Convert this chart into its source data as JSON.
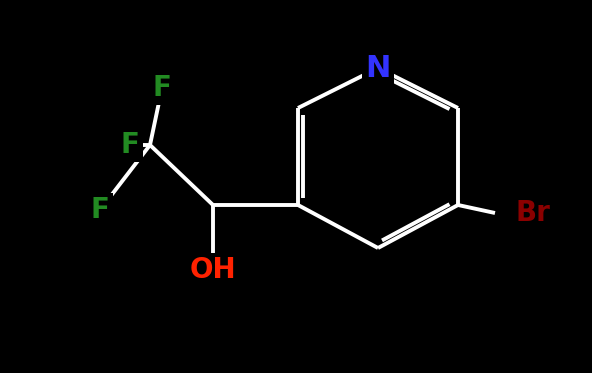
{
  "background_color": "#000000",
  "bond_color": "#ffffff",
  "bond_width": 2.8,
  "atom_colors": {
    "N": "#3333ff",
    "F": "#228B22",
    "O": "#ff2200",
    "Br": "#8B0000",
    "C": "#ffffff"
  },
  "atom_fontsizes": {
    "N": 22,
    "F": 20,
    "O": 20,
    "Br": 20
  },
  "figsize": [
    5.92,
    3.73
  ],
  "dpi": 100
}
